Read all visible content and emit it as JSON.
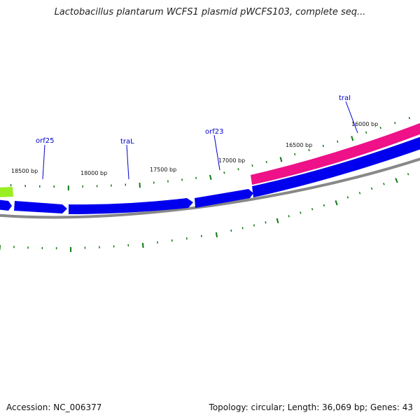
{
  "title": "Lactobacillus plantarum WCFS1 plasmid pWCFS103, complete seq...",
  "accession": "Accession: NC_006377",
  "summary": "Topology: circular; Length: 36,069 bp; Genes: 43",
  "colors": {
    "forward_strand": "#0000ee",
    "highlight_gene": "#ee1188",
    "partial_gene": "#99ee22",
    "backbone": "#888888",
    "ticks": "#117711",
    "gene_label": "#0000cc"
  },
  "tick_labels": [
    "18500 bp",
    "18000 bp",
    "17500 bp",
    "17000 bp",
    "16500 bp",
    "16000 bp"
  ],
  "gene_labels": [
    "orf25",
    "traL",
    "orf23",
    "traI"
  ]
}
